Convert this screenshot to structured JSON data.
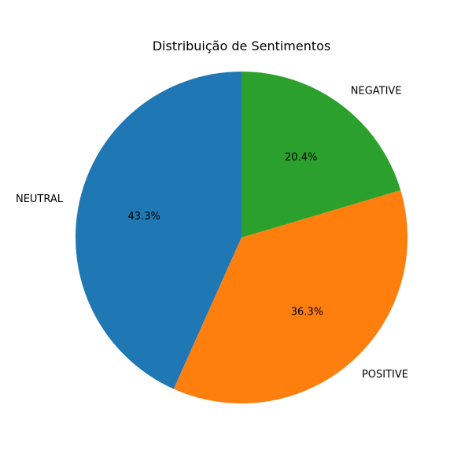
{
  "chart_data": {
    "type": "pie",
    "title": "Distribuição de Sentimentos",
    "slices": [
      {
        "label": "NEUTRAL",
        "value": 43.3,
        "pct_label": "43.3%",
        "color": "#1f77b4"
      },
      {
        "label": "POSITIVE",
        "value": 36.3,
        "pct_label": "36.3%",
        "color": "#ff7f0e"
      },
      {
        "label": "NEGATIVE",
        "value": 20.4,
        "pct_label": "20.4%",
        "color": "#2ca02c"
      }
    ],
    "start_angle_deg": 90,
    "direction": "counterclockwise"
  }
}
